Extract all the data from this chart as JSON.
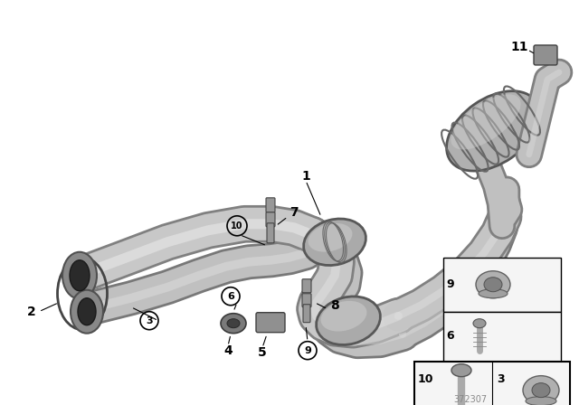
{
  "bg_color": "#ffffff",
  "part_number": "372307",
  "pipe_color": "#c0c0c0",
  "pipe_edge": "#808080",
  "pipe_dark": "#909090",
  "pipe_light": "#e0e0e0",
  "cat_color": "#b0b0b0",
  "muffler_color": "#b5b5b5",
  "bracket_color": "#a0a0a0",
  "inset_bg": "#f8f8f8",
  "label_color": "#000000",
  "part_number_color": "#888888"
}
